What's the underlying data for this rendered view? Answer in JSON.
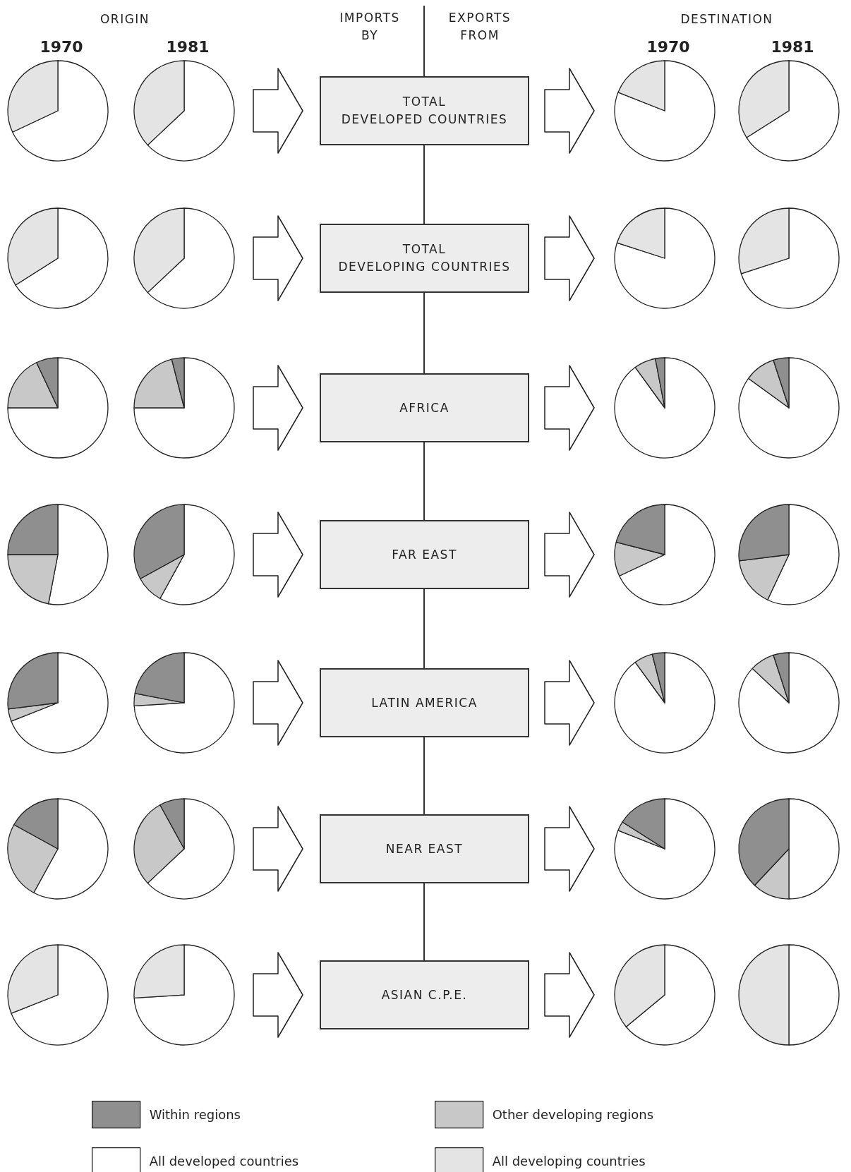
{
  "chart_data": {
    "type": "pie",
    "legend": "bottom",
    "annotations": [
      "ORIGIN",
      "IMPORTS\nBY",
      "EXPORTS\nFROM",
      "DESTINATION",
      "TOTAL\nDEVELOPED COUNTRIES",
      "TOTAL\nDEVELOPING COUNTRIES",
      "AFRICA",
      "FAR EAST",
      "LATIN AMERICA",
      "NEAR EAST",
      "ASIAN C.P.E."
    ],
    "categories": [
      "All developed countries",
      "All developing countries",
      "Other developing regions",
      "Within regions"
    ],
    "colors": [
      "#ffffff",
      "#e4e4e4",
      "#c8c8c8",
      "#8f8f8f"
    ],
    "series": [
      {
        "name": "1970",
        "values": [
          68,
          32,
          null,
          null
        ]
      },
      {
        "name": "1981",
        "values": [
          63,
          37,
          null,
          null
        ]
      },
      {
        "name": "1970",
        "values": [
          81,
          19,
          null,
          null
        ]
      },
      {
        "name": "1981",
        "values": [
          66,
          34,
          null,
          null
        ]
      },
      {
        "values": [
          66,
          34,
          null,
          null
        ]
      },
      {
        "values": [
          63,
          37,
          null,
          null
        ]
      },
      {
        "values": [
          80,
          20,
          null,
          null
        ]
      },
      {
        "values": [
          70,
          30,
          null,
          null
        ]
      },
      {
        "values": [
          75,
          null,
          18,
          7
        ]
      },
      {
        "values": [
          75,
          null,
          21,
          4
        ]
      },
      {
        "values": [
          90,
          null,
          7,
          3
        ]
      },
      {
        "values": [
          85,
          null,
          10,
          5
        ]
      },
      {
        "values": [
          53,
          null,
          22,
          25
        ]
      },
      {
        "values": [
          58,
          null,
          9,
          33
        ]
      },
      {
        "values": [
          68,
          null,
          11,
          21
        ]
      },
      {
        "values": [
          57,
          null,
          16,
          27
        ]
      },
      {
        "values": [
          69,
          null,
          4,
          27
        ]
      },
      {
        "values": [
          74,
          null,
          4,
          22
        ]
      },
      {
        "values": [
          90,
          null,
          6,
          4
        ]
      },
      {
        "values": [
          87,
          null,
          8,
          5
        ]
      },
      {
        "values": [
          58,
          null,
          25,
          17
        ]
      },
      {
        "values": [
          63,
          null,
          29,
          8
        ]
      },
      {
        "values": [
          81,
          null,
          3,
          16
        ]
      },
      {
        "values": [
          50,
          null,
          12,
          38
        ]
      },
      {
        "values": [
          69,
          31,
          null,
          null
        ]
      },
      {
        "values": [
          74,
          26,
          null,
          null
        ]
      },
      {
        "values": [
          64,
          36,
          null,
          null
        ]
      },
      {
        "values": [
          50,
          50,
          null,
          null
        ]
      }
    ]
  }
}
